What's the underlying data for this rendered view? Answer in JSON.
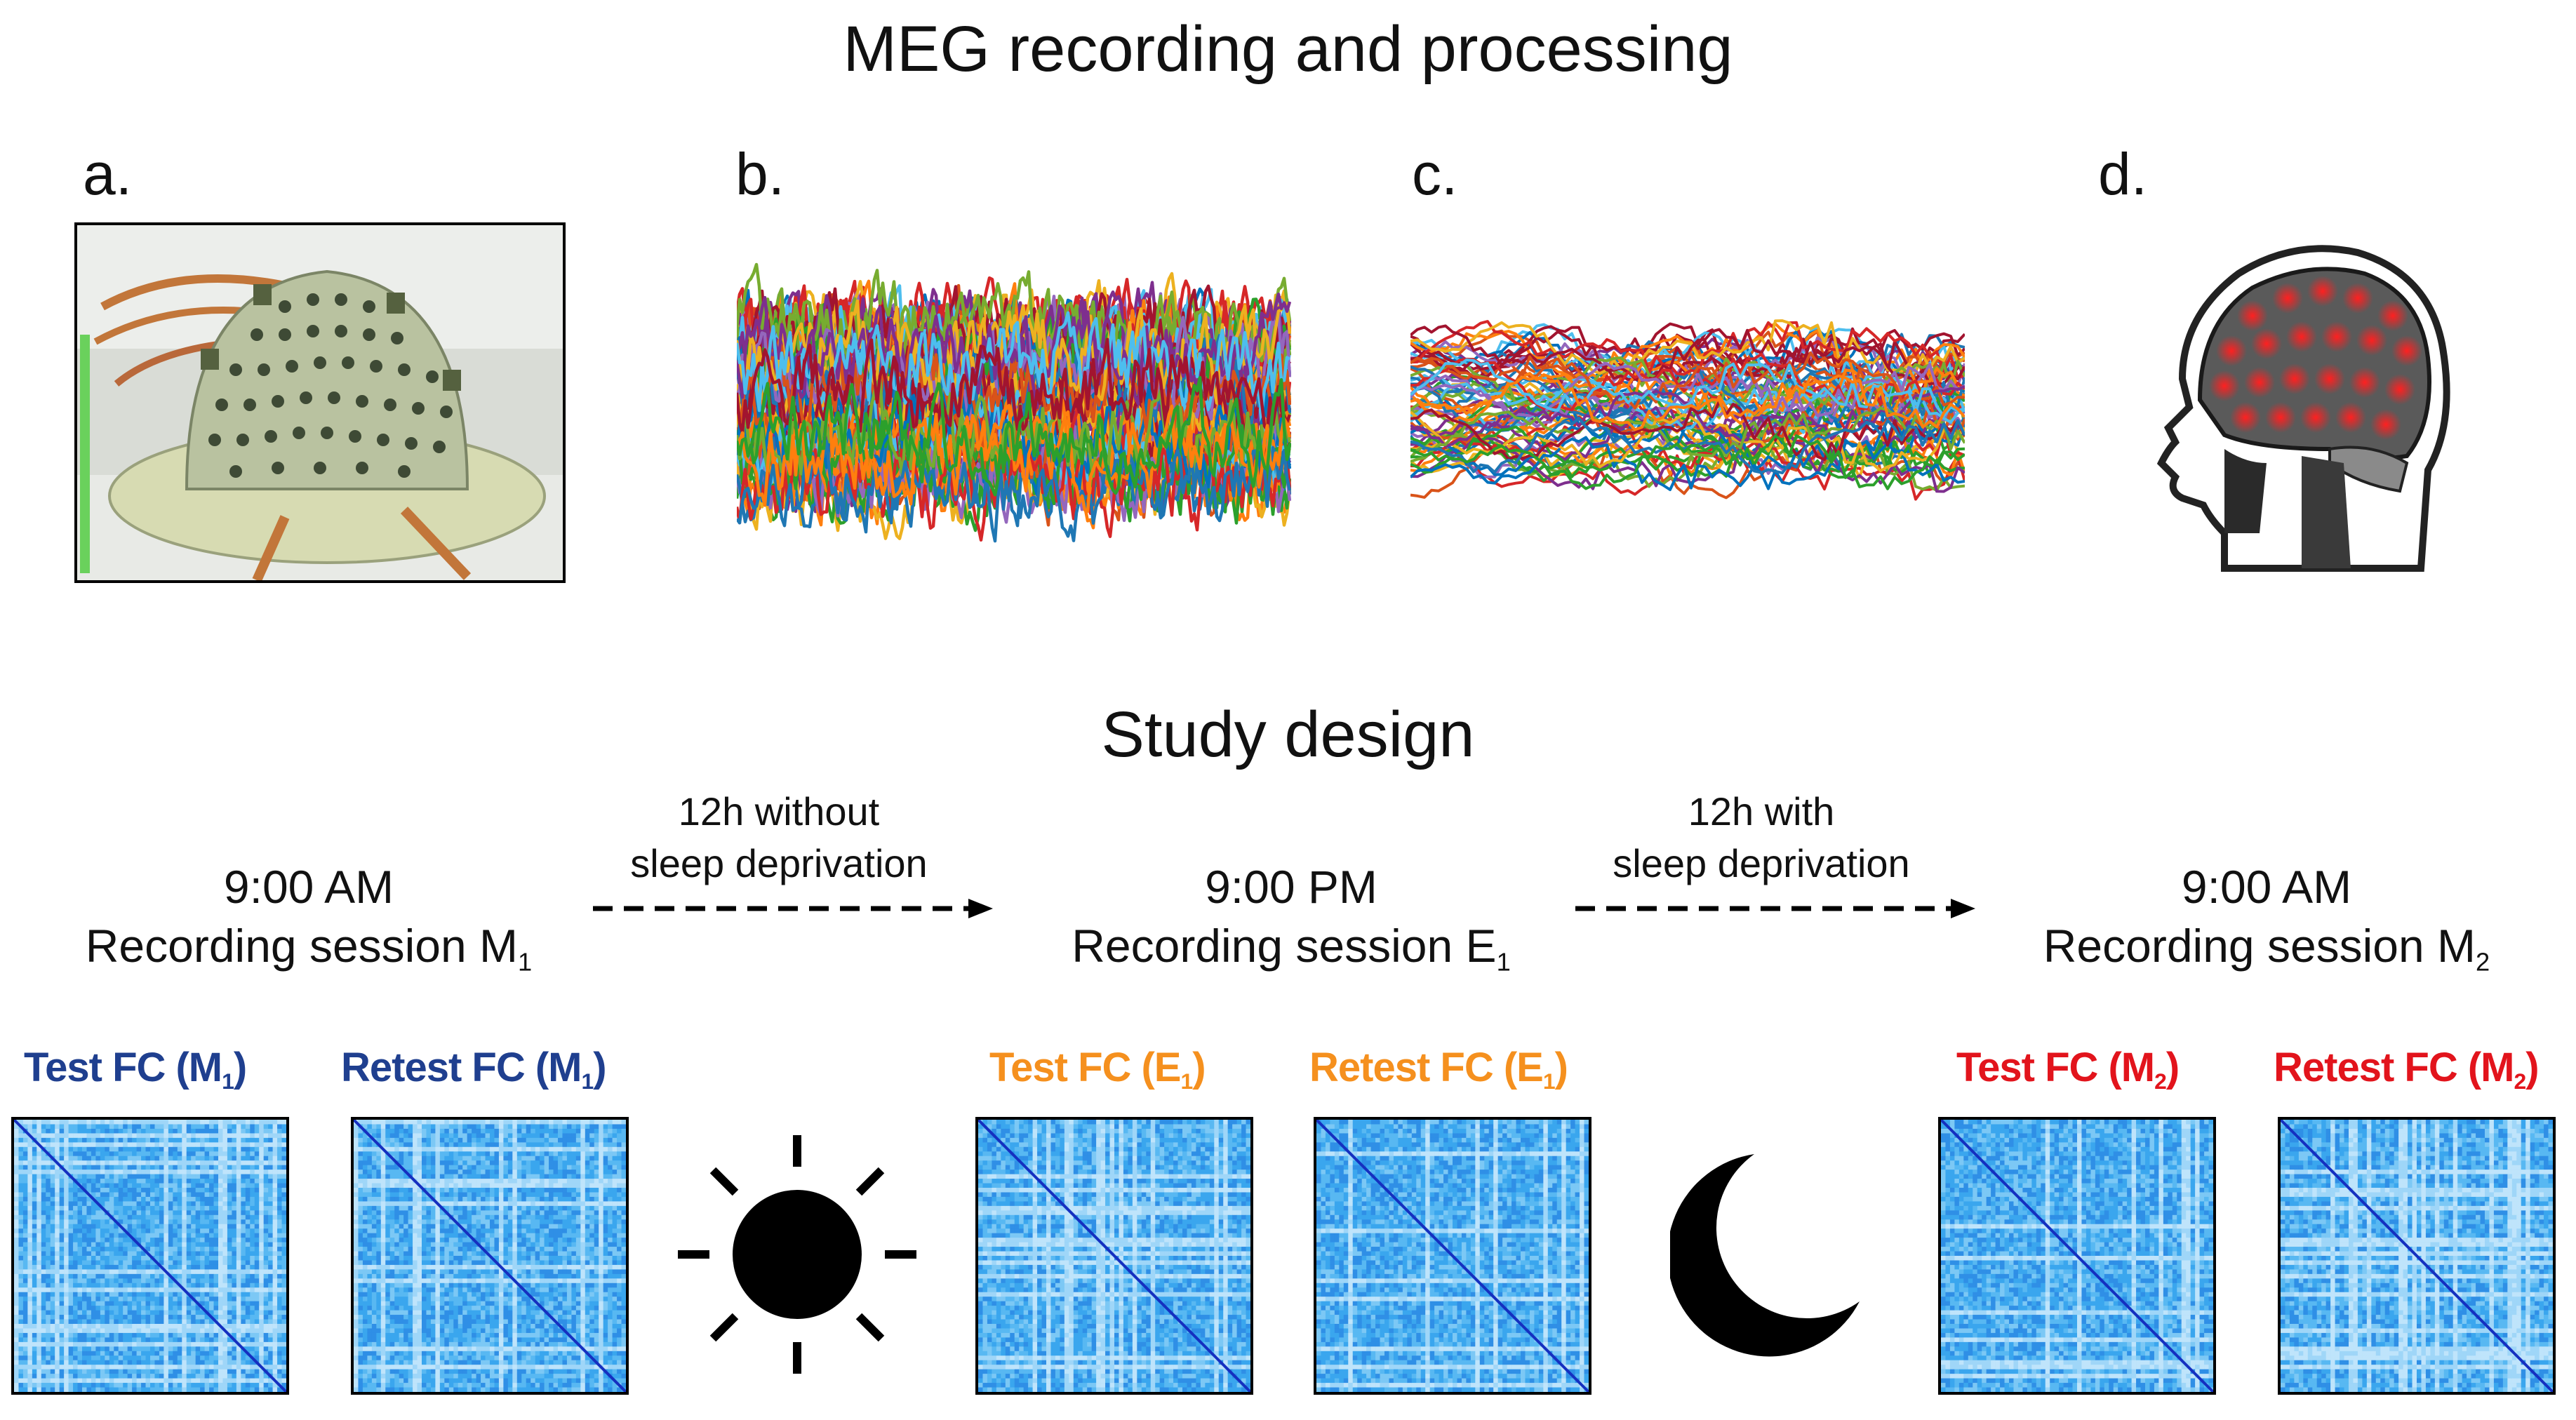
{
  "titles": {
    "top": "MEG recording and processing",
    "bottom": "Study design"
  },
  "panel_labels": {
    "a": "a.",
    "b": "b.",
    "c": "c.",
    "d": "d."
  },
  "sessions": [
    {
      "time": "9:00 AM",
      "label": "Recording session M",
      "sub": "1"
    },
    {
      "time": "9:00 PM",
      "label": "Recording session E",
      "sub": "1"
    },
    {
      "time": "9:00 AM",
      "label": "Recording session M",
      "sub": "2"
    }
  ],
  "arrows": [
    {
      "line1": "12h without",
      "line2": "sleep deprivation"
    },
    {
      "line1": "12h with",
      "line2": "sleep deprivation"
    }
  ],
  "fc_matrices": [
    {
      "pre": "Test FC (M",
      "sub": "1",
      "post": ")",
      "color": "#1f3f8f"
    },
    {
      "pre": "Retest FC (M",
      "sub": "1",
      "post": ")",
      "color": "#1f3f8f"
    },
    {
      "pre": "Test FC (E",
      "sub": "1",
      "post": ")",
      "color": "#f5901e"
    },
    {
      "pre": "Retest FC (E",
      "sub": "1",
      "post": ")",
      "color": "#f5901e"
    },
    {
      "pre": "Test FC (M",
      "sub": "2",
      "post": ")",
      "color": "#e2141c"
    },
    {
      "pre": "Retest FC (M",
      "sub": "2",
      "post": ")",
      "color": "#e2141c"
    }
  ],
  "icons": {
    "sun": "sun-icon",
    "moon": "moon-icon"
  },
  "colors": {
    "matrix_base": "#3aa6ee",
    "matrix_diag": "#1530c0",
    "text": "#111111"
  }
}
